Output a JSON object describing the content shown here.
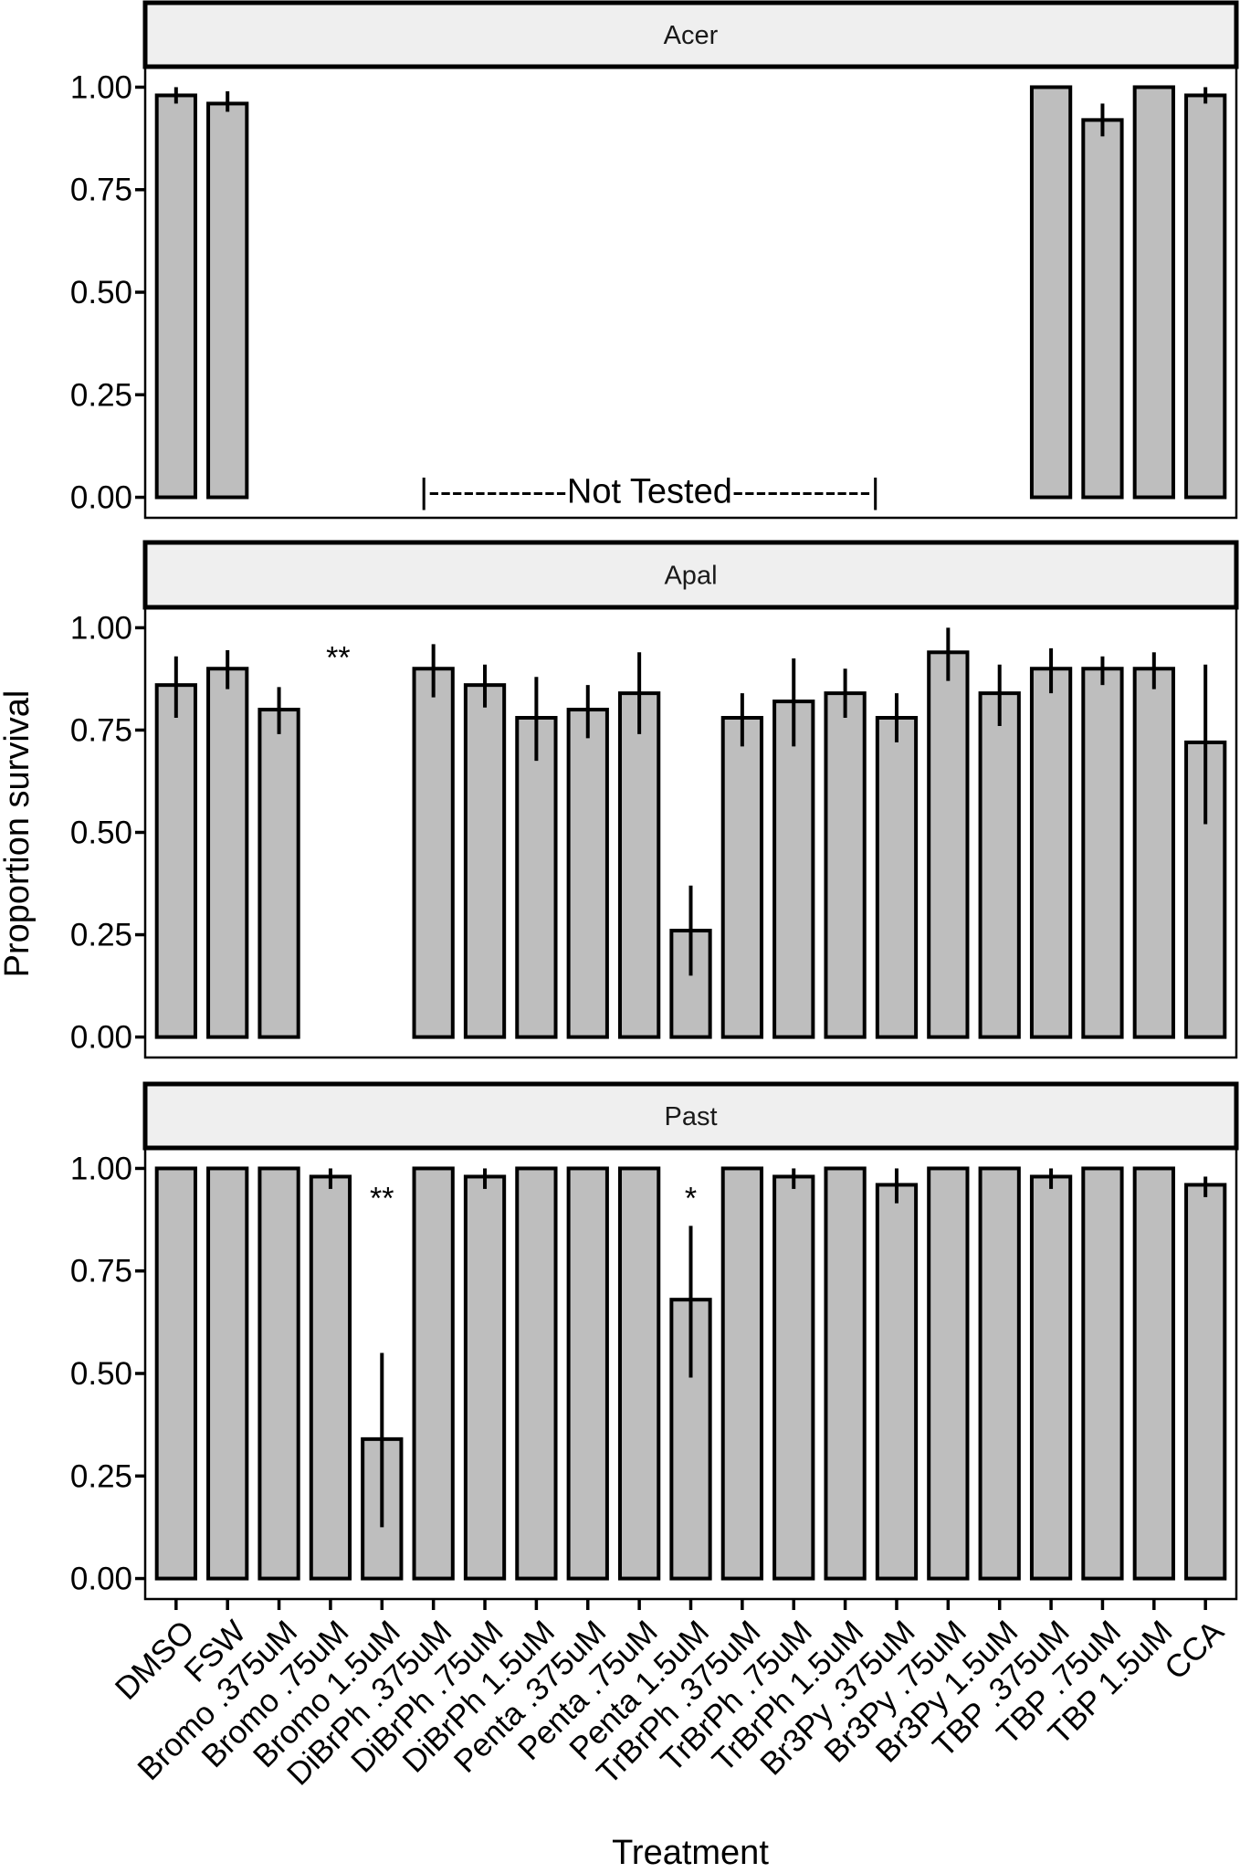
{
  "figure": {
    "ylabel": "Proportion survival",
    "xlabel": "Treatment"
  },
  "chart_data": {
    "type": "bar",
    "title": "",
    "xlabel": "Treatment",
    "ylabel": "Proportion survival",
    "ylim": [
      0,
      1
    ],
    "yticks": [
      "0.00",
      "0.25",
      "0.50",
      "0.75",
      "1.00"
    ],
    "grid": false,
    "legend": null,
    "facet_layout": "3 rows x 1 column, shared x axis",
    "categories": [
      "DMSO",
      "FSW",
      "Bromo .375uM",
      "Bromo .75uM",
      "Bromo 1.5uM",
      "DiBrPh .375uM",
      "DiBrPh .75uM",
      "DiBrPh 1.5uM",
      "Penta .375uM",
      "Penta .75uM",
      "Penta 1.5uM",
      "TrBrPh .375uM",
      "TrBrPh .75uM",
      "TrBrPh 1.5uM",
      "Br3Py .375uM",
      "Br3Py .75uM",
      "Br3Py 1.5uM",
      "TBP .375uM",
      "TBP .75uM",
      "TBP 1.5uM",
      "CCA"
    ],
    "series": [
      {
        "name": "Acer",
        "values": [
          0.98,
          0.96,
          null,
          null,
          null,
          null,
          null,
          null,
          null,
          null,
          null,
          null,
          null,
          null,
          null,
          null,
          null,
          1.0,
          0.92,
          1.0,
          0.98
        ],
        "err_low": [
          0.96,
          0.94,
          null,
          null,
          null,
          null,
          null,
          null,
          null,
          null,
          null,
          null,
          null,
          null,
          null,
          null,
          null,
          null,
          0.88,
          null,
          0.96
        ],
        "err_high": [
          1.0,
          0.99,
          null,
          null,
          null,
          null,
          null,
          null,
          null,
          null,
          null,
          null,
          null,
          null,
          null,
          null,
          null,
          null,
          0.96,
          null,
          1.0
        ],
        "annotations": [
          {
            "text": "|------------Not Tested------------|",
            "x_center_category_index": 9.2,
            "y": 0.0
          }
        ]
      },
      {
        "name": "Apal",
        "values": [
          0.86,
          0.9,
          0.8,
          0.0,
          0.0,
          0.9,
          0.86,
          0.78,
          0.8,
          0.84,
          0.26,
          0.78,
          0.82,
          0.84,
          0.78,
          0.94,
          0.84,
          0.9,
          0.9,
          0.9,
          0.72
        ],
        "err_low": [
          0.78,
          0.85,
          0.74,
          null,
          null,
          0.83,
          0.805,
          0.675,
          0.73,
          0.74,
          0.15,
          0.71,
          0.71,
          0.78,
          0.72,
          0.87,
          0.76,
          0.84,
          0.86,
          0.85,
          0.52
        ],
        "err_high": [
          0.93,
          0.945,
          0.855,
          null,
          null,
          0.96,
          0.91,
          0.88,
          0.86,
          0.94,
          0.37,
          0.84,
          0.925,
          0.9,
          0.84,
          1.0,
          0.91,
          0.95,
          0.93,
          0.94,
          0.91
        ],
        "annotations": [
          {
            "text": "**",
            "x_center_category_index": 3.15,
            "y": 0.96
          }
        ]
      },
      {
        "name": "Past",
        "values": [
          1.0,
          1.0,
          1.0,
          0.98,
          0.34,
          1.0,
          0.98,
          1.0,
          1.0,
          1.0,
          0.68,
          1.0,
          0.98,
          1.0,
          0.96,
          1.0,
          1.0,
          0.98,
          1.0,
          1.0,
          0.96
        ],
        "err_low": [
          null,
          null,
          null,
          0.95,
          0.125,
          null,
          0.95,
          null,
          null,
          null,
          0.49,
          null,
          0.95,
          null,
          0.915,
          null,
          null,
          0.95,
          null,
          null,
          0.93
        ],
        "err_high": [
          null,
          null,
          null,
          1.0,
          0.55,
          null,
          1.0,
          null,
          null,
          null,
          0.86,
          null,
          1.0,
          null,
          1.0,
          null,
          null,
          1.0,
          null,
          null,
          0.98
        ],
        "annotations": [
          {
            "text": "**",
            "x_center_category_index": 4.0,
            "y": 0.96
          },
          {
            "text": "*",
            "x_center_category_index": 10.0,
            "y": 0.96
          }
        ]
      }
    ]
  },
  "colors": {
    "bar_fill": "#bebebe",
    "bar_outline": "#000000",
    "strip_fill": "#efefef",
    "background": "#ffffff"
  }
}
